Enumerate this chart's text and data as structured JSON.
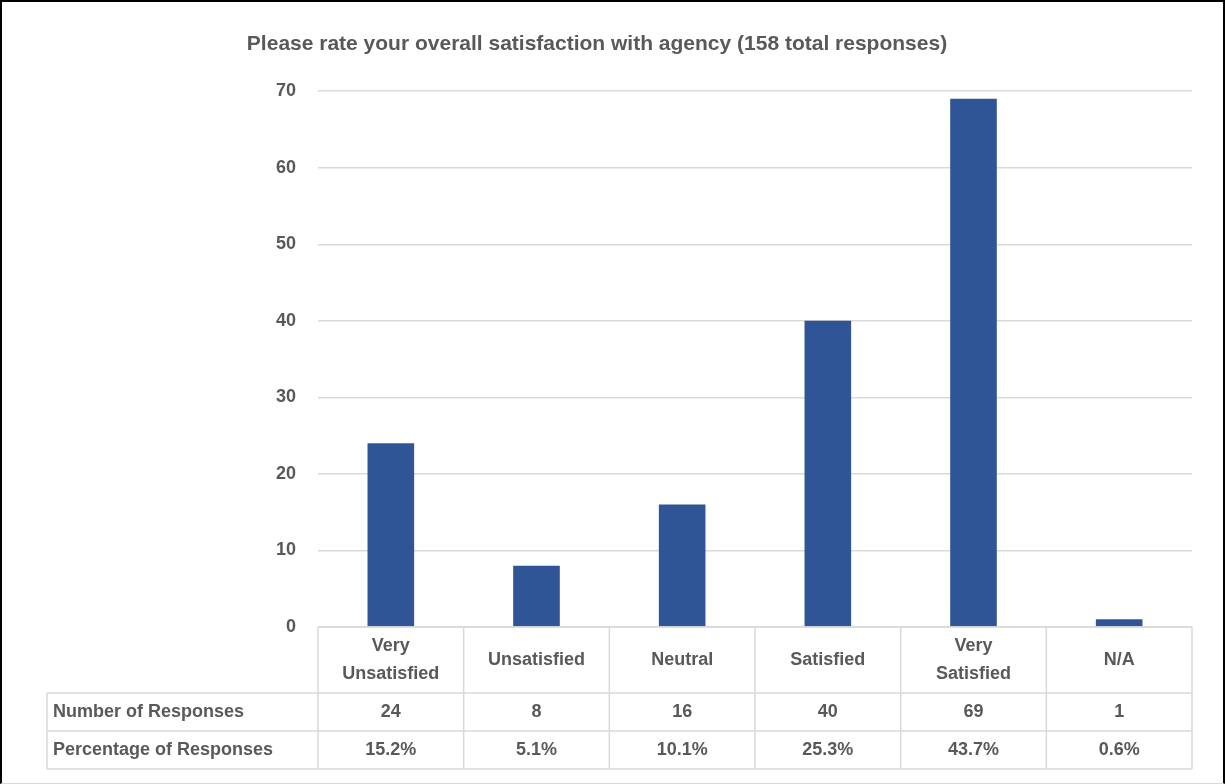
{
  "chart_data": {
    "type": "bar",
    "title": "Please rate your overall satisfaction with agency (158 total responses)",
    "categories": [
      "Very Unsatisfied",
      "Unsatisfied",
      "Neutral",
      "Satisfied",
      "Very Satisfied",
      "N/A"
    ],
    "series": [
      {
        "name": "Number of Responses",
        "color": "#2f5597",
        "values": [
          24,
          8,
          16,
          40,
          69,
          1
        ]
      }
    ],
    "ylim": [
      0,
      70
    ],
    "yticks": [
      0,
      10,
      20,
      30,
      40,
      50,
      60,
      70
    ],
    "grid": "y",
    "legend": false,
    "data_labels": true,
    "annotations": [
      "Percentage of Responses",
      "15.2%",
      "5.1%",
      "10.1%",
      "25.3%",
      "43.7%",
      "0.6%"
    ]
  }
}
